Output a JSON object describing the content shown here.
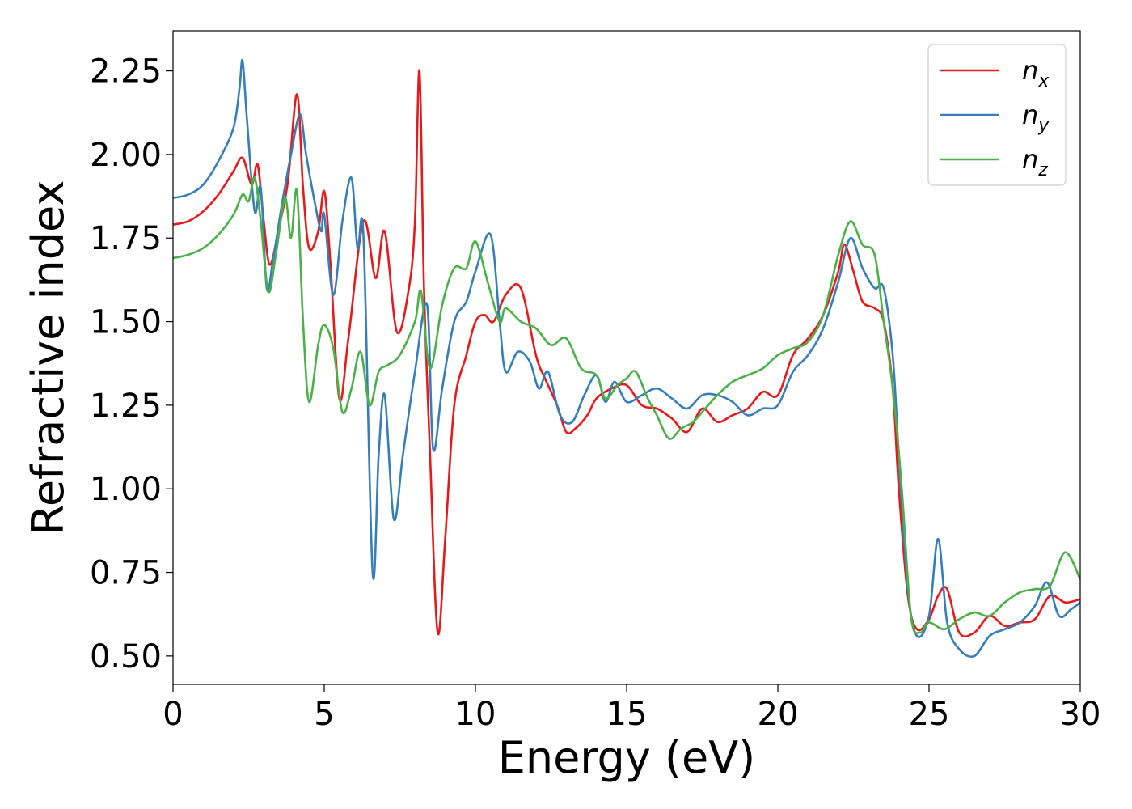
{
  "chart_data": {
    "type": "line",
    "title": "",
    "xlabel": "Energy (eV)",
    "ylabel": "Refractive index",
    "xlim": [
      0,
      30
    ],
    "ylim": [
      0.415,
      2.37
    ],
    "xticks": [
      0,
      5,
      10,
      15,
      20,
      25,
      30
    ],
    "yticks": [
      0.5,
      0.75,
      1.0,
      1.25,
      1.5,
      1.75,
      2.0,
      2.25
    ],
    "ytick_labels": [
      "0.50",
      "0.75",
      "1.00",
      "1.25",
      "1.50",
      "1.75",
      "2.00",
      "2.25"
    ],
    "grid": false,
    "legend_position": "top-right",
    "series": [
      {
        "name": "n_x",
        "label_base": "n",
        "label_sub": "x",
        "color": "#e41a1c",
        "points": [
          [
            0,
            1.79
          ],
          [
            0.5,
            1.8
          ],
          [
            1,
            1.83
          ],
          [
            1.5,
            1.88
          ],
          [
            2,
            1.95
          ],
          [
            2.3,
            1.99
          ],
          [
            2.6,
            1.91
          ],
          [
            2.8,
            1.97
          ],
          [
            3.0,
            1.8
          ],
          [
            3.2,
            1.67
          ],
          [
            3.5,
            1.78
          ],
          [
            3.8,
            1.92
          ],
          [
            4.1,
            2.18
          ],
          [
            4.3,
            1.9
          ],
          [
            4.5,
            1.72
          ],
          [
            4.8,
            1.77
          ],
          [
            5.0,
            1.89
          ],
          [
            5.2,
            1.68
          ],
          [
            5.5,
            1.27
          ],
          [
            5.8,
            1.45
          ],
          [
            6.3,
            1.8
          ],
          [
            6.7,
            1.63
          ],
          [
            7.0,
            1.77
          ],
          [
            7.4,
            1.47
          ],
          [
            7.8,
            1.6
          ],
          [
            8.0,
            1.8
          ],
          [
            8.15,
            2.25
          ],
          [
            8.3,
            1.6
          ],
          [
            8.5,
            1.1
          ],
          [
            8.75,
            0.57
          ],
          [
            9.0,
            0.85
          ],
          [
            9.3,
            1.25
          ],
          [
            9.7,
            1.4
          ],
          [
            10.0,
            1.5
          ],
          [
            10.3,
            1.52
          ],
          [
            10.6,
            1.5
          ],
          [
            11.0,
            1.58
          ],
          [
            11.5,
            1.6
          ],
          [
            12.0,
            1.4
          ],
          [
            12.3,
            1.33
          ],
          [
            12.7,
            1.25
          ],
          [
            13.0,
            1.17
          ],
          [
            13.3,
            1.18
          ],
          [
            13.7,
            1.22
          ],
          [
            14.0,
            1.27
          ],
          [
            14.5,
            1.3
          ],
          [
            15.0,
            1.31
          ],
          [
            15.5,
            1.25
          ],
          [
            16.0,
            1.24
          ],
          [
            16.5,
            1.21
          ],
          [
            17.0,
            1.17
          ],
          [
            17.5,
            1.24
          ],
          [
            18.0,
            1.2
          ],
          [
            18.5,
            1.22
          ],
          [
            19.0,
            1.24
          ],
          [
            19.5,
            1.29
          ],
          [
            20.0,
            1.28
          ],
          [
            20.5,
            1.4
          ],
          [
            21.0,
            1.45
          ],
          [
            21.5,
            1.52
          ],
          [
            22.0,
            1.65
          ],
          [
            22.2,
            1.73
          ],
          [
            22.5,
            1.65
          ],
          [
            22.8,
            1.56
          ],
          [
            23.2,
            1.54
          ],
          [
            23.5,
            1.5
          ],
          [
            23.8,
            1.3
          ],
          [
            24.0,
            1.0
          ],
          [
            24.3,
            0.68
          ],
          [
            24.6,
            0.58
          ],
          [
            25.0,
            0.61
          ],
          [
            25.3,
            0.68
          ],
          [
            25.6,
            0.7
          ],
          [
            26.0,
            0.57
          ],
          [
            26.5,
            0.57
          ],
          [
            27.0,
            0.62
          ],
          [
            27.5,
            0.59
          ],
          [
            28.0,
            0.6
          ],
          [
            28.5,
            0.61
          ],
          [
            29.0,
            0.68
          ],
          [
            29.5,
            0.66
          ],
          [
            30.0,
            0.67
          ]
        ]
      },
      {
        "name": "n_y",
        "label_base": "n",
        "label_sub": "y",
        "color": "#377eb8",
        "points": [
          [
            0,
            1.87
          ],
          [
            0.5,
            1.88
          ],
          [
            1,
            1.91
          ],
          [
            1.5,
            1.98
          ],
          [
            2,
            2.08
          ],
          [
            2.2,
            2.2
          ],
          [
            2.3,
            2.28
          ],
          [
            2.45,
            2.1
          ],
          [
            2.7,
            1.83
          ],
          [
            2.9,
            1.9
          ],
          [
            3.1,
            1.6
          ],
          [
            3.3,
            1.68
          ],
          [
            3.6,
            1.85
          ],
          [
            3.9,
            2.0
          ],
          [
            4.2,
            2.12
          ],
          [
            4.4,
            2.0
          ],
          [
            4.7,
            1.85
          ],
          [
            4.9,
            1.77
          ],
          [
            5.0,
            1.82
          ],
          [
            5.3,
            1.58
          ],
          [
            5.6,
            1.8
          ],
          [
            5.9,
            1.93
          ],
          [
            6.1,
            1.72
          ],
          [
            6.3,
            1.75
          ],
          [
            6.6,
            0.75
          ],
          [
            6.8,
            1.1
          ],
          [
            7.0,
            1.28
          ],
          [
            7.3,
            0.91
          ],
          [
            7.6,
            1.1
          ],
          [
            8.0,
            1.35
          ],
          [
            8.4,
            1.55
          ],
          [
            8.6,
            1.12
          ],
          [
            8.9,
            1.3
          ],
          [
            9.3,
            1.5
          ],
          [
            9.7,
            1.56
          ],
          [
            10.0,
            1.65
          ],
          [
            10.5,
            1.76
          ],
          [
            10.8,
            1.5
          ],
          [
            11.0,
            1.35
          ],
          [
            11.4,
            1.41
          ],
          [
            11.8,
            1.38
          ],
          [
            12.1,
            1.3
          ],
          [
            12.4,
            1.35
          ],
          [
            12.8,
            1.22
          ],
          [
            13.2,
            1.2
          ],
          [
            13.6,
            1.28
          ],
          [
            14.0,
            1.34
          ],
          [
            14.3,
            1.26
          ],
          [
            14.6,
            1.32
          ],
          [
            15.0,
            1.26
          ],
          [
            15.5,
            1.28
          ],
          [
            16.0,
            1.3
          ],
          [
            16.5,
            1.27
          ],
          [
            17.0,
            1.24
          ],
          [
            17.5,
            1.28
          ],
          [
            18.0,
            1.28
          ],
          [
            18.5,
            1.26
          ],
          [
            19.0,
            1.22
          ],
          [
            19.5,
            1.24
          ],
          [
            20.0,
            1.25
          ],
          [
            20.5,
            1.35
          ],
          [
            21.0,
            1.4
          ],
          [
            21.5,
            1.48
          ],
          [
            22.0,
            1.62
          ],
          [
            22.4,
            1.75
          ],
          [
            22.8,
            1.66
          ],
          [
            23.2,
            1.6
          ],
          [
            23.5,
            1.6
          ],
          [
            23.8,
            1.4
          ],
          [
            24.0,
            1.1
          ],
          [
            24.3,
            0.7
          ],
          [
            24.6,
            0.56
          ],
          [
            25.0,
            0.62
          ],
          [
            25.3,
            0.85
          ],
          [
            25.6,
            0.6
          ],
          [
            26.0,
            0.52
          ],
          [
            26.5,
            0.5
          ],
          [
            27.0,
            0.56
          ],
          [
            27.5,
            0.58
          ],
          [
            28.0,
            0.6
          ],
          [
            28.5,
            0.65
          ],
          [
            28.9,
            0.72
          ],
          [
            29.3,
            0.62
          ],
          [
            29.7,
            0.64
          ],
          [
            30.0,
            0.66
          ]
        ]
      },
      {
        "name": "n_z",
        "label_base": "n",
        "label_sub": "z",
        "color": "#4daf4a",
        "points": [
          [
            0,
            1.69
          ],
          [
            0.5,
            1.7
          ],
          [
            1,
            1.72
          ],
          [
            1.5,
            1.76
          ],
          [
            2,
            1.82
          ],
          [
            2.3,
            1.88
          ],
          [
            2.5,
            1.86
          ],
          [
            2.7,
            1.93
          ],
          [
            2.9,
            1.8
          ],
          [
            3.15,
            1.59
          ],
          [
            3.4,
            1.7
          ],
          [
            3.7,
            1.87
          ],
          [
            3.9,
            1.75
          ],
          [
            4.1,
            1.89
          ],
          [
            4.3,
            1.5
          ],
          [
            4.5,
            1.26
          ],
          [
            4.8,
            1.43
          ],
          [
            5.0,
            1.49
          ],
          [
            5.3,
            1.42
          ],
          [
            5.6,
            1.23
          ],
          [
            5.9,
            1.3
          ],
          [
            6.2,
            1.41
          ],
          [
            6.5,
            1.25
          ],
          [
            6.8,
            1.35
          ],
          [
            7.1,
            1.37
          ],
          [
            7.5,
            1.4
          ],
          [
            8.0,
            1.5
          ],
          [
            8.2,
            1.59
          ],
          [
            8.5,
            1.36
          ],
          [
            8.9,
            1.55
          ],
          [
            9.3,
            1.66
          ],
          [
            9.7,
            1.66
          ],
          [
            10.0,
            1.74
          ],
          [
            10.4,
            1.62
          ],
          [
            10.8,
            1.5
          ],
          [
            11.0,
            1.54
          ],
          [
            11.5,
            1.5
          ],
          [
            12.0,
            1.48
          ],
          [
            12.5,
            1.43
          ],
          [
            13.0,
            1.45
          ],
          [
            13.5,
            1.36
          ],
          [
            14.0,
            1.34
          ],
          [
            14.3,
            1.27
          ],
          [
            14.7,
            1.31
          ],
          [
            15.0,
            1.33
          ],
          [
            15.3,
            1.35
          ],
          [
            15.7,
            1.27
          ],
          [
            16.0,
            1.22
          ],
          [
            16.4,
            1.15
          ],
          [
            16.8,
            1.18
          ],
          [
            17.2,
            1.2
          ],
          [
            17.6,
            1.24
          ],
          [
            18.0,
            1.28
          ],
          [
            18.5,
            1.32
          ],
          [
            19.0,
            1.34
          ],
          [
            19.5,
            1.36
          ],
          [
            20.0,
            1.4
          ],
          [
            20.5,
            1.42
          ],
          [
            21.0,
            1.44
          ],
          [
            21.5,
            1.52
          ],
          [
            22.0,
            1.7
          ],
          [
            22.4,
            1.8
          ],
          [
            22.8,
            1.73
          ],
          [
            23.2,
            1.7
          ],
          [
            23.5,
            1.5
          ],
          [
            23.8,
            1.3
          ],
          [
            24.1,
            1.0
          ],
          [
            24.4,
            0.62
          ],
          [
            24.7,
            0.57
          ],
          [
            25.0,
            0.6
          ],
          [
            25.5,
            0.58
          ],
          [
            26.0,
            0.61
          ],
          [
            26.5,
            0.63
          ],
          [
            27.0,
            0.62
          ],
          [
            27.5,
            0.66
          ],
          [
            28.0,
            0.69
          ],
          [
            28.5,
            0.7
          ],
          [
            29.0,
            0.71
          ],
          [
            29.5,
            0.81
          ],
          [
            30.0,
            0.73
          ]
        ]
      }
    ]
  }
}
